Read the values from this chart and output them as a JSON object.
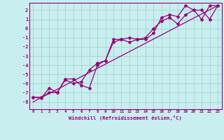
{
  "xlabel": "Windchill (Refroidissement éolien,°C)",
  "bg_color": "#c8eef0",
  "grid_color": "#a8d8cc",
  "line_color": "#990077",
  "xlim": [
    -0.5,
    23.5
  ],
  "ylim": [
    -8.8,
    2.8
  ],
  "yticks": [
    2,
    1,
    0,
    -1,
    -2,
    -3,
    -4,
    -5,
    -6,
    -7,
    -8
  ],
  "xticks": [
    0,
    1,
    2,
    3,
    4,
    5,
    6,
    7,
    8,
    9,
    10,
    11,
    12,
    13,
    14,
    15,
    16,
    17,
    18,
    19,
    20,
    21,
    22,
    23
  ],
  "series1_x": [
    0,
    1,
    2,
    3,
    4,
    5,
    6,
    7,
    8,
    9,
    10,
    11,
    12,
    13,
    14,
    15,
    16,
    17,
    18,
    19,
    20,
    21,
    22,
    23
  ],
  "series1_y": [
    -7.5,
    -7.6,
    -6.5,
    -7.0,
    -5.6,
    -6.0,
    -5.8,
    -4.5,
    -3.8,
    -3.5,
    -1.5,
    -1.2,
    -1.0,
    -1.2,
    -1.0,
    0.0,
    0.8,
    1.2,
    0.5,
    1.5,
    2.0,
    2.0,
    1.0,
    2.5
  ],
  "series2_x": [
    0,
    1,
    2,
    3,
    4,
    5,
    6,
    7,
    8,
    9,
    10,
    11,
    12,
    13,
    14,
    15,
    16,
    17,
    18,
    19,
    20,
    21,
    22,
    23
  ],
  "series2_y": [
    -7.5,
    -7.5,
    -7.0,
    -7.0,
    -5.5,
    -5.5,
    -6.2,
    -6.5,
    -4.0,
    -3.5,
    -1.2,
    -1.2,
    -1.5,
    -1.2,
    -1.2,
    -0.5,
    1.2,
    1.5,
    1.3,
    2.5,
    2.0,
    1.0,
    2.5,
    2.5
  ],
  "series3_x": [
    0,
    23
  ],
  "series3_y": [
    -8.0,
    2.5
  ]
}
